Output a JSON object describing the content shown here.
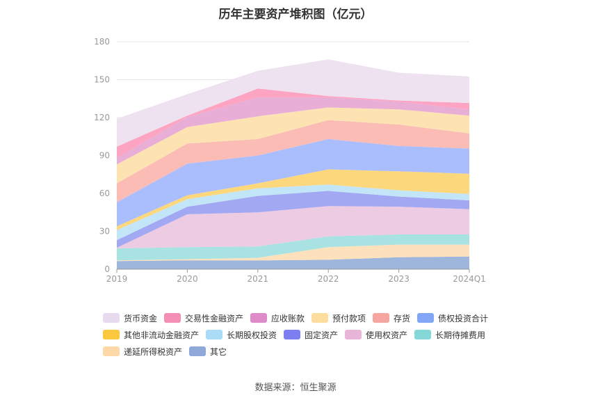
{
  "chart_data": {
    "type": "area",
    "title": "历年主要资产堆积图（亿元）",
    "stacked": true,
    "categories": [
      "2019",
      "2020",
      "2021",
      "2022",
      "2023",
      "2024Q1"
    ],
    "ylim": [
      0,
      180
    ],
    "yticks": [
      0,
      30,
      60,
      90,
      120,
      150,
      180
    ],
    "grid": true,
    "legend_position": "bottom",
    "series": [
      {
        "name": "其它",
        "color": "#9fb6dc",
        "values": [
          6.5,
          7,
          7,
          7.5,
          9.5,
          10
        ]
      },
      {
        "name": "递延所得税资产",
        "color": "#fde1bd",
        "values": [
          0.5,
          1,
          2,
          10,
          10,
          9.5
        ]
      },
      {
        "name": "长期待摊费用",
        "color": "#a8e2e2",
        "values": [
          9.5,
          9.5,
          9,
          8.5,
          8,
          8
        ]
      },
      {
        "name": "使用权资产",
        "color": "#eccbe3",
        "values": [
          0.5,
          26,
          27,
          24,
          22,
          20
        ]
      },
      {
        "name": "固定资产",
        "color": "#a3a8f2",
        "values": [
          6,
          6,
          13,
          12,
          8,
          7
        ]
      },
      {
        "name": "长期股权投资",
        "color": "#c2e5f7",
        "values": [
          8,
          6,
          6,
          5,
          5,
          5
        ]
      },
      {
        "name": "其他非流动金融资产",
        "color": "#fdd77c",
        "values": [
          3,
          3,
          4,
          12,
          15,
          16
        ]
      },
      {
        "name": "债权投资合计",
        "color": "#aabdfc",
        "values": [
          19,
          25,
          22,
          24,
          20,
          20
        ]
      },
      {
        "name": "存货",
        "color": "#fbbcb6",
        "values": [
          15,
          16,
          13,
          15,
          17,
          12
        ]
      },
      {
        "name": "预付款项",
        "color": "#fde3b2",
        "values": [
          15,
          13,
          18,
          10,
          12,
          14
        ]
      },
      {
        "name": "应收账款",
        "color": "#e8aed6",
        "values": [
          5,
          8,
          15,
          8,
          6,
          5
        ]
      },
      {
        "name": "交易性金融资产",
        "color": "#fda4c2",
        "values": [
          9,
          1,
          7,
          1,
          1,
          5
        ]
      },
      {
        "name": "货币资金",
        "color": "#eee1f0",
        "values": [
          22,
          17,
          14,
          29,
          22,
          21
        ]
      }
    ]
  },
  "legend": [
    {
      "label": "货币资金",
      "color": "#e8dbef"
    },
    {
      "label": "交易性金融资产",
      "color": "#f68fb4"
    },
    {
      "label": "应收账款",
      "color": "#dd8cc8"
    },
    {
      "label": "预付款项",
      "color": "#fddea0"
    },
    {
      "label": "存货",
      "color": "#f6a6a0"
    },
    {
      "label": "债权投资合计",
      "color": "#84a6f7"
    },
    {
      "label": "其他非流动金融资产",
      "color": "#fbc73f"
    },
    {
      "label": "长期股权投资",
      "color": "#aadcf8"
    },
    {
      "label": "固定资产",
      "color": "#7b7ff0"
    },
    {
      "label": "使用权资产",
      "color": "#e8b4d8"
    },
    {
      "label": "长期待摊费用",
      "color": "#86d8d8"
    },
    {
      "label": "递延所得税资产",
      "color": "#fdd9a8"
    },
    {
      "label": "其它",
      "color": "#8fa9db"
    }
  ],
  "source_text": "数据来源：恒生聚源"
}
